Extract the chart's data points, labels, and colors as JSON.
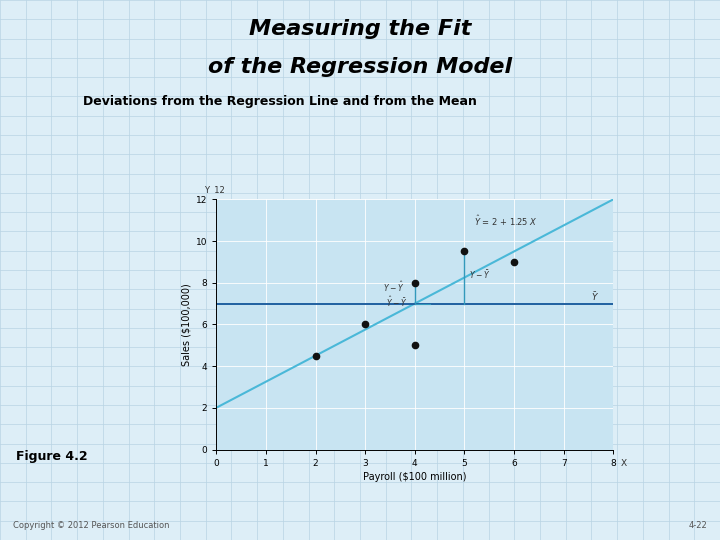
{
  "title_line1": "Measuring the Fit",
  "title_line2": "of the Regression Model",
  "subtitle": "Deviations from the Regression Line and from the Mean",
  "figure_label": "Figure 4.2",
  "copyright": "Copyright © 2012 Pearson Education",
  "page_num": "4-22",
  "bg_slide": "#ddeef7",
  "bg_chart": "#c8e4f2",
  "title_bg": "#62bcd6",
  "title_color": "#000000",
  "subtitle_color": "#000000",
  "y_mean": 7.0,
  "regression_slope": 1.25,
  "regression_intercept": 2.0,
  "data_points": [
    [
      2,
      4.5
    ],
    [
      3,
      6.0
    ],
    [
      4,
      8.0
    ],
    [
      4,
      5.0
    ],
    [
      5,
      9.5
    ],
    [
      6,
      9.0
    ]
  ],
  "xlabel": "Payroll ($100 million)",
  "ylabel": "Sales ($100,000)",
  "xlim": [
    0,
    8
  ],
  "ylim": [
    0,
    12
  ],
  "xticks": [
    0,
    1,
    2,
    3,
    4,
    5,
    6,
    7,
    8
  ],
  "yticks": [
    0,
    2,
    4,
    6,
    8,
    10,
    12
  ],
  "line_color": "#4ab8d8",
  "mean_line_color": "#2060a0",
  "point_color": "#111111",
  "vline_color": "#3399bb",
  "annotation_color": "#333333",
  "grid_color": "#b8d4e4",
  "white_grid_color": "#ffffff"
}
